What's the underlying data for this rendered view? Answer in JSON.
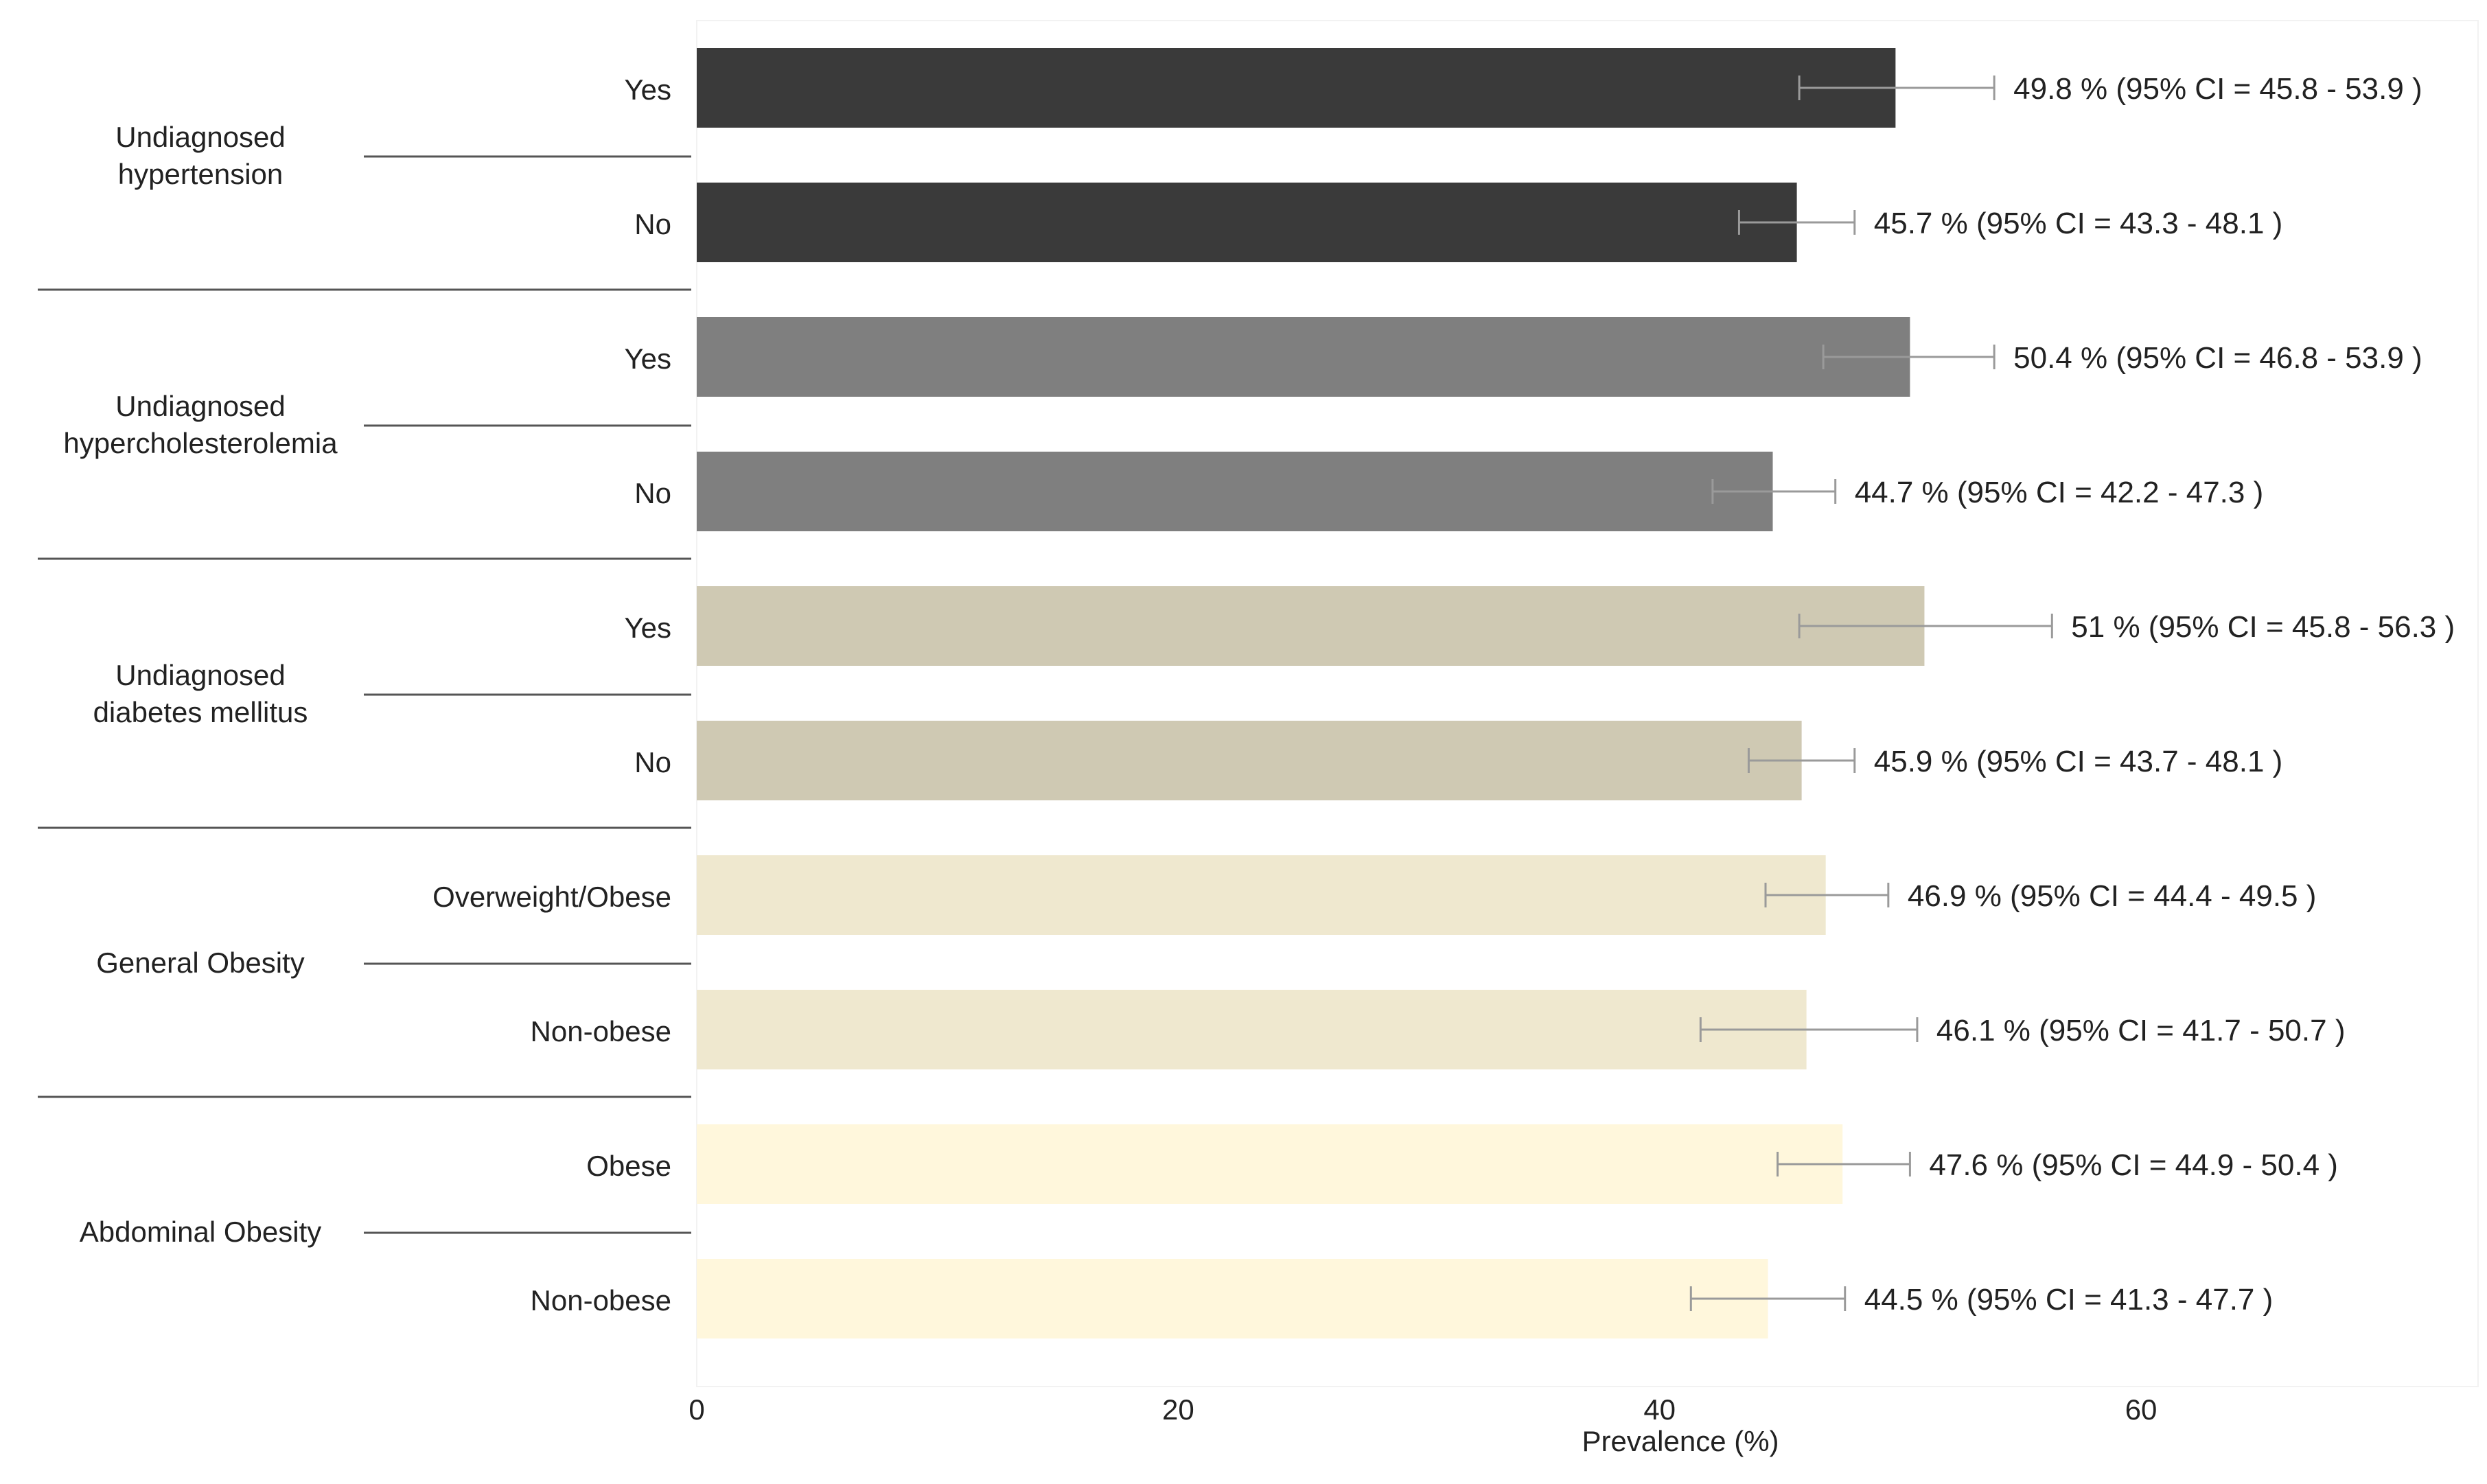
{
  "chart_data": {
    "type": "bar",
    "orientation": "horizontal",
    "xlabel": "Prevalence (%)",
    "xlim": [
      0,
      74
    ],
    "xticks": [
      0,
      20,
      40,
      60
    ],
    "grid": false,
    "legend": "none",
    "groups": [
      {
        "name": "Undiagnosed hypertension",
        "name_lines": [
          "Undiagnosed",
          "hypertension"
        ],
        "color": "#3a3a3a",
        "bars": [
          {
            "category": "Yes",
            "value": 49.8,
            "ci_low": 45.8,
            "ci_high": 53.9,
            "label": "49.8 % (95% CI = 45.8 - 53.9 )"
          },
          {
            "category": "No",
            "value": 45.7,
            "ci_low": 43.3,
            "ci_high": 48.1,
            "label": "45.7 % (95% CI = 43.3 - 48.1 )"
          }
        ]
      },
      {
        "name": "Undiagnosed hypercholesterolemia",
        "name_lines": [
          "Undiagnosed",
          "hypercholesterolemia"
        ],
        "color": "#7f7f7f",
        "bars": [
          {
            "category": "Yes",
            "value": 50.4,
            "ci_low": 46.8,
            "ci_high": 53.9,
            "label": "50.4 % (95% CI = 46.8 - 53.9 )"
          },
          {
            "category": "No",
            "value": 44.7,
            "ci_low": 42.2,
            "ci_high": 47.3,
            "label": "44.7 % (95% CI = 42.2 - 47.3 )"
          }
        ]
      },
      {
        "name": "Undiagnosed diabetes mellitus",
        "name_lines": [
          "Undiagnosed",
          "diabetes mellitus"
        ],
        "color": "#cfc9b3",
        "bars": [
          {
            "category": "Yes",
            "value": 51,
            "ci_low": 45.8,
            "ci_high": 56.3,
            "label": "51 % (95% CI = 45.8 - 56.3 )"
          },
          {
            "category": "No",
            "value": 45.9,
            "ci_low": 43.7,
            "ci_high": 48.1,
            "label": "45.9 % (95% CI = 43.7 - 48.1 )"
          }
        ]
      },
      {
        "name": "General Obesity",
        "name_lines": [
          "General Obesity"
        ],
        "color": "#efe8cf",
        "bars": [
          {
            "category": "Overweight/Obese",
            "value": 46.9,
            "ci_low": 44.4,
            "ci_high": 49.5,
            "label": "46.9 % (95% CI = 44.4 - 49.5 )"
          },
          {
            "category": "Non-obese",
            "value": 46.1,
            "ci_low": 41.7,
            "ci_high": 50.7,
            "label": "46.1 % (95% CI = 41.7 - 50.7 )"
          }
        ]
      },
      {
        "name": "Abdominal Obesity",
        "name_lines": [
          "Abdominal Obesity"
        ],
        "color": "#fff7dc",
        "bars": [
          {
            "category": "Obese",
            "value": 47.6,
            "ci_low": 44.9,
            "ci_high": 50.4,
            "label": "47.6 % (95% CI = 44.9 - 50.4 )"
          },
          {
            "category": "Non-obese",
            "value": 44.5,
            "ci_low": 41.3,
            "ci_high": 47.7,
            "label": "44.5 % (95% CI = 41.3 - 47.7 )"
          }
        ]
      }
    ]
  }
}
